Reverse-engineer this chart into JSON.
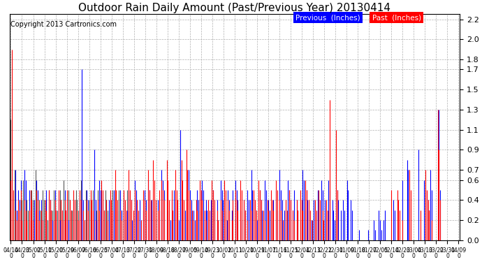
{
  "title": "Outdoor Rain Daily Amount (Past/Previous Year) 20130414",
  "copyright": "Copyright 2013 Cartronics.com",
  "legend_previous": "Previous  (Inches)",
  "legend_past": "Past  (Inches)",
  "yticks": [
    0.0,
    0.2,
    0.4,
    0.6,
    0.7,
    0.9,
    1.1,
    1.3,
    1.5,
    1.7,
    1.8,
    2.0,
    2.2
  ],
  "ylim": [
    0.0,
    2.25
  ],
  "color_previous": "#0000ff",
  "color_past": "#ff0000",
  "color_gray": "#555555",
  "bg_color": "#ffffff",
  "grid_color": "#b0b0b0",
  "title_fontsize": 11,
  "copyright_fontsize": 7,
  "xtick_fontsize": 5.5,
  "ytick_fontsize": 8,
  "x_labels": [
    "04/14\n0",
    "04/23\n0",
    "05/02\n0",
    "05/11\n0",
    "05/20\n0",
    "05/29\n0",
    "06/07\n0",
    "06/16\n0",
    "06/25\n0",
    "07/04\n0",
    "07/13\n0",
    "07/22\n0",
    "07/31\n0",
    "08/09\n0",
    "08/18\n0",
    "08/27\n0",
    "09/05\n0",
    "09/14\n0",
    "09/23\n0",
    "10/02\n0",
    "10/11\n0",
    "10/20\n0",
    "10/29\n0",
    "11/07\n0",
    "11/16\n0",
    "11/25\n0",
    "12/04\n0",
    "12/13\n0",
    "12/22\n0",
    "12/31\n0",
    "01/09\n0",
    "01/18\n0",
    "01/27\n0",
    "02/05\n0",
    "02/14\n0",
    "02/23\n0",
    "03/04\n0",
    "03/13\n0",
    "03/22\n0",
    "03/31\n0",
    "04/09\n0"
  ],
  "n_points": 366,
  "prev_rain": [
    0.6,
    0.0,
    0.0,
    0.0,
    0.7,
    0.3,
    0.5,
    0.4,
    0.6,
    0.2,
    0.0,
    0.7,
    0.6,
    0.0,
    0.0,
    0.5,
    0.3,
    0.0,
    0.2,
    0.4,
    0.0,
    0.6,
    0.5,
    0.3,
    0.0,
    0.4,
    0.2,
    0.0,
    0.3,
    0.5,
    0.0,
    0.0,
    0.4,
    0.3,
    0.2,
    0.0,
    0.5,
    0.3,
    0.0,
    0.4,
    0.2,
    0.0,
    0.3,
    0.0,
    0.5,
    0.3,
    0.4,
    0.2,
    0.0,
    0.3,
    0.0,
    0.4,
    0.3,
    0.0,
    0.2,
    0.0,
    0.4,
    0.0,
    1.7,
    0.4,
    0.2,
    0.0,
    0.5,
    0.4,
    0.0,
    0.3,
    0.2,
    0.0,
    0.9,
    0.4,
    0.2,
    0.0,
    0.6,
    0.5,
    0.0,
    0.4,
    0.3,
    0.0,
    0.2,
    0.0,
    0.4,
    0.3,
    0.2,
    0.0,
    0.5,
    0.4,
    0.0,
    0.3,
    0.0,
    0.5,
    0.3,
    0.0,
    0.4,
    0.2,
    0.0,
    0.3,
    0.5,
    0.0,
    0.4,
    0.2,
    0.0,
    0.6,
    0.5,
    0.3,
    0.0,
    0.4,
    0.2,
    0.0,
    0.3,
    0.5,
    0.4,
    0.0,
    0.6,
    0.5,
    0.0,
    0.4,
    0.3,
    0.0,
    0.2,
    0.0,
    0.4,
    0.3,
    0.0,
    0.7,
    0.6,
    0.5,
    0.0,
    0.4,
    0.3,
    0.0,
    0.2,
    0.4,
    0.0,
    0.5,
    0.4,
    0.0,
    0.3,
    0.2,
    1.1,
    0.5,
    0.4,
    0.0,
    0.3,
    0.5,
    0.0,
    0.7,
    0.5,
    0.4,
    0.0,
    0.3,
    0.2,
    0.0,
    0.5,
    0.4,
    0.3,
    0.0,
    0.6,
    0.5,
    0.0,
    0.4,
    0.3,
    0.0,
    0.2,
    0.4,
    0.0,
    0.5,
    0.3,
    0.0,
    0.4,
    0.2,
    0.0,
    0.6,
    0.5,
    0.4,
    0.0,
    0.3,
    0.2,
    0.5,
    0.4,
    0.0,
    0.3,
    0.5,
    0.0,
    0.6,
    0.5,
    0.4,
    0.0,
    0.3,
    0.2,
    0.0,
    0.4,
    0.3,
    0.0,
    0.5,
    0.4,
    0.0,
    0.7,
    0.5,
    0.4,
    0.0,
    0.3,
    0.2,
    0.0,
    0.5,
    0.4,
    0.3,
    0.0,
    0.6,
    0.5,
    0.0,
    0.4,
    0.3,
    0.0,
    0.2,
    0.4,
    0.0,
    0.5,
    0.3,
    0.0,
    0.7,
    0.5,
    0.4,
    0.0,
    0.3,
    0.2,
    0.0,
    0.6,
    0.5,
    0.4,
    0.0,
    0.3,
    0.5,
    0.0,
    0.4,
    0.3,
    0.0,
    0.2,
    0.0,
    0.7,
    0.6,
    0.0,
    0.5,
    0.4,
    0.3,
    0.0,
    0.2,
    0.0,
    0.4,
    0.3,
    0.0,
    0.5,
    0.4,
    0.0,
    0.6,
    0.5,
    0.0,
    0.4,
    0.3,
    0.0,
    0.6,
    0.5,
    0.0,
    0.4,
    0.3,
    0.2,
    0.0,
    0.5,
    0.4,
    0.0,
    0.3,
    0.0,
    0.4,
    0.3,
    0.0,
    0.6,
    0.5,
    0.0,
    0.4,
    0.3,
    0.0,
    0.0,
    0.0,
    0.0,
    0.0,
    0.1,
    0.0,
    0.0,
    0.0,
    0.0,
    0.0,
    0.0,
    0.1,
    0.0,
    0.0,
    0.0,
    0.0,
    0.2,
    0.1,
    0.0,
    0.0,
    0.3,
    0.2,
    0.1,
    0.0,
    0.2,
    0.3,
    0.0,
    0.0,
    0.0,
    0.0,
    0.0,
    0.0,
    0.4,
    0.3,
    0.0,
    0.0,
    0.0,
    0.0,
    0.0,
    0.6,
    0.0,
    0.0,
    0.0,
    0.8,
    0.7,
    0.0,
    0.0,
    0.0,
    0.0,
    0.0,
    0.0,
    0.0,
    0.9,
    0.0,
    0.0,
    0.0,
    0.0,
    0.6,
    0.5,
    0.0,
    0.4,
    0.3,
    0.7,
    0.5,
    0.0,
    0.0,
    0.0,
    0.0,
    0.0,
    1.3,
    0.5,
    0.0,
    0.0,
    0.0,
    0.0,
    0.0,
    0.0,
    0.0,
    0.0,
    0.0,
    0.0,
    0.0,
    0.0,
    0.0,
    0.0,
    0.0
  ],
  "past_rain": [
    0.6,
    1.9,
    0.5,
    0.0,
    0.3,
    0.2,
    0.4,
    0.3,
    0.5,
    0.2,
    0.0,
    0.4,
    0.3,
    0.2,
    0.0,
    0.3,
    0.5,
    0.4,
    0.2,
    0.0,
    0.3,
    0.5,
    0.4,
    0.2,
    0.0,
    0.3,
    0.2,
    0.0,
    0.4,
    0.3,
    0.0,
    0.5,
    0.4,
    0.3,
    0.0,
    0.2,
    0.4,
    0.3,
    0.0,
    0.5,
    0.0,
    0.4,
    0.3,
    0.2,
    0.4,
    0.3,
    0.5,
    0.0,
    0.4,
    0.3,
    0.0,
    0.5,
    0.4,
    0.0,
    0.3,
    0.2,
    0.5,
    0.4,
    0.0,
    0.3,
    0.2,
    0.0,
    0.4,
    0.3,
    0.0,
    0.5,
    0.4,
    0.3,
    0.0,
    0.2,
    0.0,
    0.4,
    0.3,
    0.0,
    0.6,
    0.5,
    0.3,
    0.0,
    0.4,
    0.2,
    0.0,
    0.5,
    0.4,
    0.3,
    0.0,
    0.7,
    0.5,
    0.4,
    0.0,
    0.3,
    0.2,
    0.0,
    0.5,
    0.4,
    0.3,
    0.0,
    0.7,
    0.5,
    0.4,
    0.0,
    0.3,
    0.5,
    0.0,
    0.4,
    0.3,
    0.0,
    0.2,
    0.0,
    0.5,
    0.4,
    0.3,
    0.0,
    0.7,
    0.5,
    0.4,
    0.0,
    0.8,
    0.6,
    0.4,
    0.0,
    0.3,
    0.5,
    0.0,
    0.6,
    0.5,
    0.4,
    0.0,
    0.8,
    0.6,
    0.4,
    0.0,
    0.5,
    0.3,
    0.0,
    0.7,
    0.5,
    0.4,
    0.0,
    0.0,
    0.8,
    0.6,
    0.4,
    0.0,
    0.9,
    0.7,
    0.5,
    0.4,
    0.0,
    0.3,
    0.2,
    0.0,
    0.4,
    0.3,
    0.0,
    0.6,
    0.5,
    0.4,
    0.0,
    0.3,
    0.2,
    0.0,
    0.4,
    0.3,
    0.0,
    0.6,
    0.5,
    0.4,
    0.0,
    0.3,
    0.2,
    0.0,
    0.4,
    0.3,
    0.0,
    0.6,
    0.5,
    0.0,
    0.4,
    0.3,
    0.0,
    0.2,
    0.4,
    0.0,
    0.5,
    0.4,
    0.3,
    0.0,
    0.6,
    0.5,
    0.0,
    0.4,
    0.3,
    0.0,
    0.2,
    0.0,
    0.4,
    0.3,
    0.0,
    0.5,
    0.4,
    0.3,
    0.0,
    0.6,
    0.5,
    0.4,
    0.0,
    0.3,
    0.2,
    0.0,
    0.4,
    0.3,
    0.0,
    0.5,
    0.4,
    0.3,
    0.0,
    0.6,
    0.5,
    0.0,
    0.4,
    0.3,
    0.0,
    0.2,
    0.0,
    0.4,
    0.3,
    0.0,
    0.5,
    0.4,
    0.0,
    0.3,
    0.2,
    0.0,
    0.4,
    0.3,
    0.0,
    0.5,
    0.4,
    0.3,
    0.0,
    0.6,
    0.5,
    0.0,
    0.4,
    0.3,
    0.0,
    0.2,
    0.0,
    0.4,
    0.3,
    0.0,
    0.5,
    0.4,
    0.0,
    0.3,
    0.2,
    0.0,
    0.4,
    0.3,
    0.0,
    1.4,
    0.0,
    0.0,
    0.0,
    0.0,
    1.1,
    0.5,
    0.0,
    0.0,
    0.0,
    0.0,
    0.0,
    0.0,
    0.0,
    0.0,
    0.0,
    0.0,
    0.0,
    0.0,
    0.0,
    0.0,
    0.0,
    0.0,
    0.0,
    0.0,
    0.0,
    0.0,
    0.0,
    0.0,
    0.0,
    0.0,
    0.0,
    0.0,
    0.0,
    0.0,
    0.0,
    0.0,
    0.0,
    0.0,
    0.0,
    0.0,
    0.0,
    0.0,
    0.0,
    0.0,
    0.0,
    0.0,
    0.0,
    0.0,
    0.0,
    0.5,
    0.0,
    0.0,
    0.0,
    0.0,
    0.5,
    0.4,
    0.3,
    0.0,
    0.2,
    0.0,
    0.0,
    0.0,
    0.0,
    0.0,
    0.7,
    0.5,
    0.0,
    0.0,
    0.0,
    0.0,
    0.0,
    0.0,
    0.0,
    0.3,
    0.0,
    0.0,
    0.0,
    0.7,
    0.5,
    0.4,
    0.3,
    0.0,
    0.2,
    0.0,
    0.0,
    0.0,
    0.0,
    1.3,
    0.9,
    0.4,
    0.0,
    0.0,
    0.0,
    0.0,
    0.0,
    0.0,
    0.0,
    0.0,
    0.0,
    0.0,
    0.0,
    0.0,
    0.0,
    0.0,
    0.0
  ],
  "gray_rain": [
    1.2,
    0.0,
    0.0,
    0.7,
    0.5,
    0.0,
    0.3,
    0.2,
    0.0,
    0.4,
    0.6,
    0.5,
    0.0,
    0.4,
    0.3,
    0.0,
    0.2,
    0.5,
    0.4,
    0.0,
    0.7,
    0.5,
    0.0,
    0.4,
    0.3,
    0.0,
    0.5,
    0.4,
    0.0,
    0.3,
    0.2,
    0.5,
    0.4,
    0.0,
    0.3,
    0.5,
    0.4,
    0.0,
    0.3,
    0.2,
    0.5,
    0.4,
    0.0,
    0.6,
    0.0,
    0.0,
    0.0,
    0.5,
    0.4,
    0.0,
    0.3,
    0.0,
    0.0,
    0.5,
    0.4,
    0.3,
    0.0,
    0.6,
    0.0,
    0.0,
    0.0,
    0.5,
    0.0,
    0.0,
    0.4,
    0.0,
    0.0,
    0.5,
    0.0,
    0.0,
    0.3,
    0.5,
    0.4,
    0.3,
    0.0,
    0.2,
    0.0,
    0.5,
    0.4,
    0.3,
    0.0,
    0.0,
    0.0,
    0.5,
    0.0,
    0.0,
    0.0,
    0.0,
    0.5,
    0.4,
    0.3,
    0.0,
    0.0,
    0.0,
    0.0,
    0.5,
    0.4,
    0.3,
    0.0,
    0.0,
    0.0,
    0.0,
    0.0,
    0.0,
    0.0,
    0.0,
    0.0,
    0.0,
    0.0,
    0.0,
    0.0,
    0.0,
    0.0,
    0.0,
    0.0,
    0.0,
    0.0,
    0.0,
    0.0,
    0.0,
    0.0,
    0.0,
    0.0,
    0.0,
    0.0,
    0.0,
    0.0,
    0.0,
    0.0,
    0.0,
    0.0,
    0.0,
    0.0,
    0.0,
    0.0,
    0.0,
    0.0,
    0.0,
    0.0,
    0.0,
    0.0,
    0.0,
    0.0,
    0.0,
    0.0,
    0.0,
    0.0,
    0.0,
    0.0,
    0.0,
    0.0,
    0.0,
    0.0,
    0.0,
    0.0,
    0.0,
    0.0,
    0.0,
    0.0,
    0.0,
    0.0,
    0.0,
    0.0,
    0.0,
    0.0,
    0.0,
    0.0,
    0.0,
    0.0,
    0.0,
    0.0,
    0.0,
    0.0,
    0.0,
    0.0,
    0.0,
    0.0,
    0.0,
    0.0,
    0.0,
    0.0,
    0.0,
    0.0,
    0.0,
    0.0,
    0.0,
    0.0,
    0.0,
    0.0,
    0.0,
    0.0,
    0.0,
    0.0,
    0.0,
    0.0,
    0.0,
    0.0,
    0.0,
    0.0,
    0.0,
    0.0,
    0.0,
    0.0,
    0.0,
    0.0,
    0.0,
    0.0,
    0.0,
    0.0,
    0.0,
    0.0,
    0.0,
    0.0,
    0.0,
    0.0,
    0.0,
    0.0,
    0.0,
    0.0,
    0.0,
    0.0,
    0.0,
    0.0,
    0.0,
    0.0,
    0.0,
    0.0,
    0.0,
    0.0,
    0.0,
    0.0,
    0.0,
    0.0,
    0.0,
    0.0,
    0.0,
    0.0,
    0.0,
    0.0,
    0.0,
    0.0,
    0.0,
    0.0,
    0.0,
    0.0,
    0.0,
    0.0,
    0.0,
    0.0,
    0.0,
    0.0,
    0.0,
    0.0,
    0.0,
    0.0,
    0.0,
    0.0,
    0.0,
    0.0,
    0.0,
    0.0,
    0.0,
    0.0,
    0.0,
    0.0,
    0.0,
    0.0,
    0.0,
    0.0,
    0.0,
    0.0,
    0.0,
    0.0,
    0.0,
    0.0,
    0.0,
    0.0,
    0.0,
    0.0,
    0.0,
    0.0,
    0.0,
    0.0,
    0.0,
    0.0,
    0.0,
    0.0,
    0.0,
    0.0,
    0.0,
    0.0,
    0.0,
    0.0,
    0.0,
    0.0,
    0.0,
    0.0,
    0.0,
    0.0,
    0.0,
    0.0,
    0.0,
    0.0,
    0.0,
    0.0,
    0.0,
    0.0,
    0.0,
    0.0,
    0.0,
    0.0,
    0.0,
    0.0,
    0.0,
    0.0,
    0.0,
    0.0,
    0.0,
    0.0,
    0.0,
    0.0,
    0.0,
    0.0,
    0.0,
    0.0,
    0.0,
    0.0,
    0.0,
    0.0,
    0.0,
    0.0,
    0.0,
    0.0,
    0.0,
    0.0,
    0.0,
    0.0,
    0.0,
    0.0,
    0.0,
    0.0,
    0.0,
    0.0,
    0.0,
    0.0,
    0.0,
    0.0,
    0.0,
    0.0,
    0.0,
    0.0,
    0.0,
    0.0,
    0.0,
    0.0,
    0.0,
    0.0,
    0.0,
    0.0,
    0.0,
    0.0,
    0.0,
    0.0,
    0.0,
    0.0,
    0.0
  ]
}
